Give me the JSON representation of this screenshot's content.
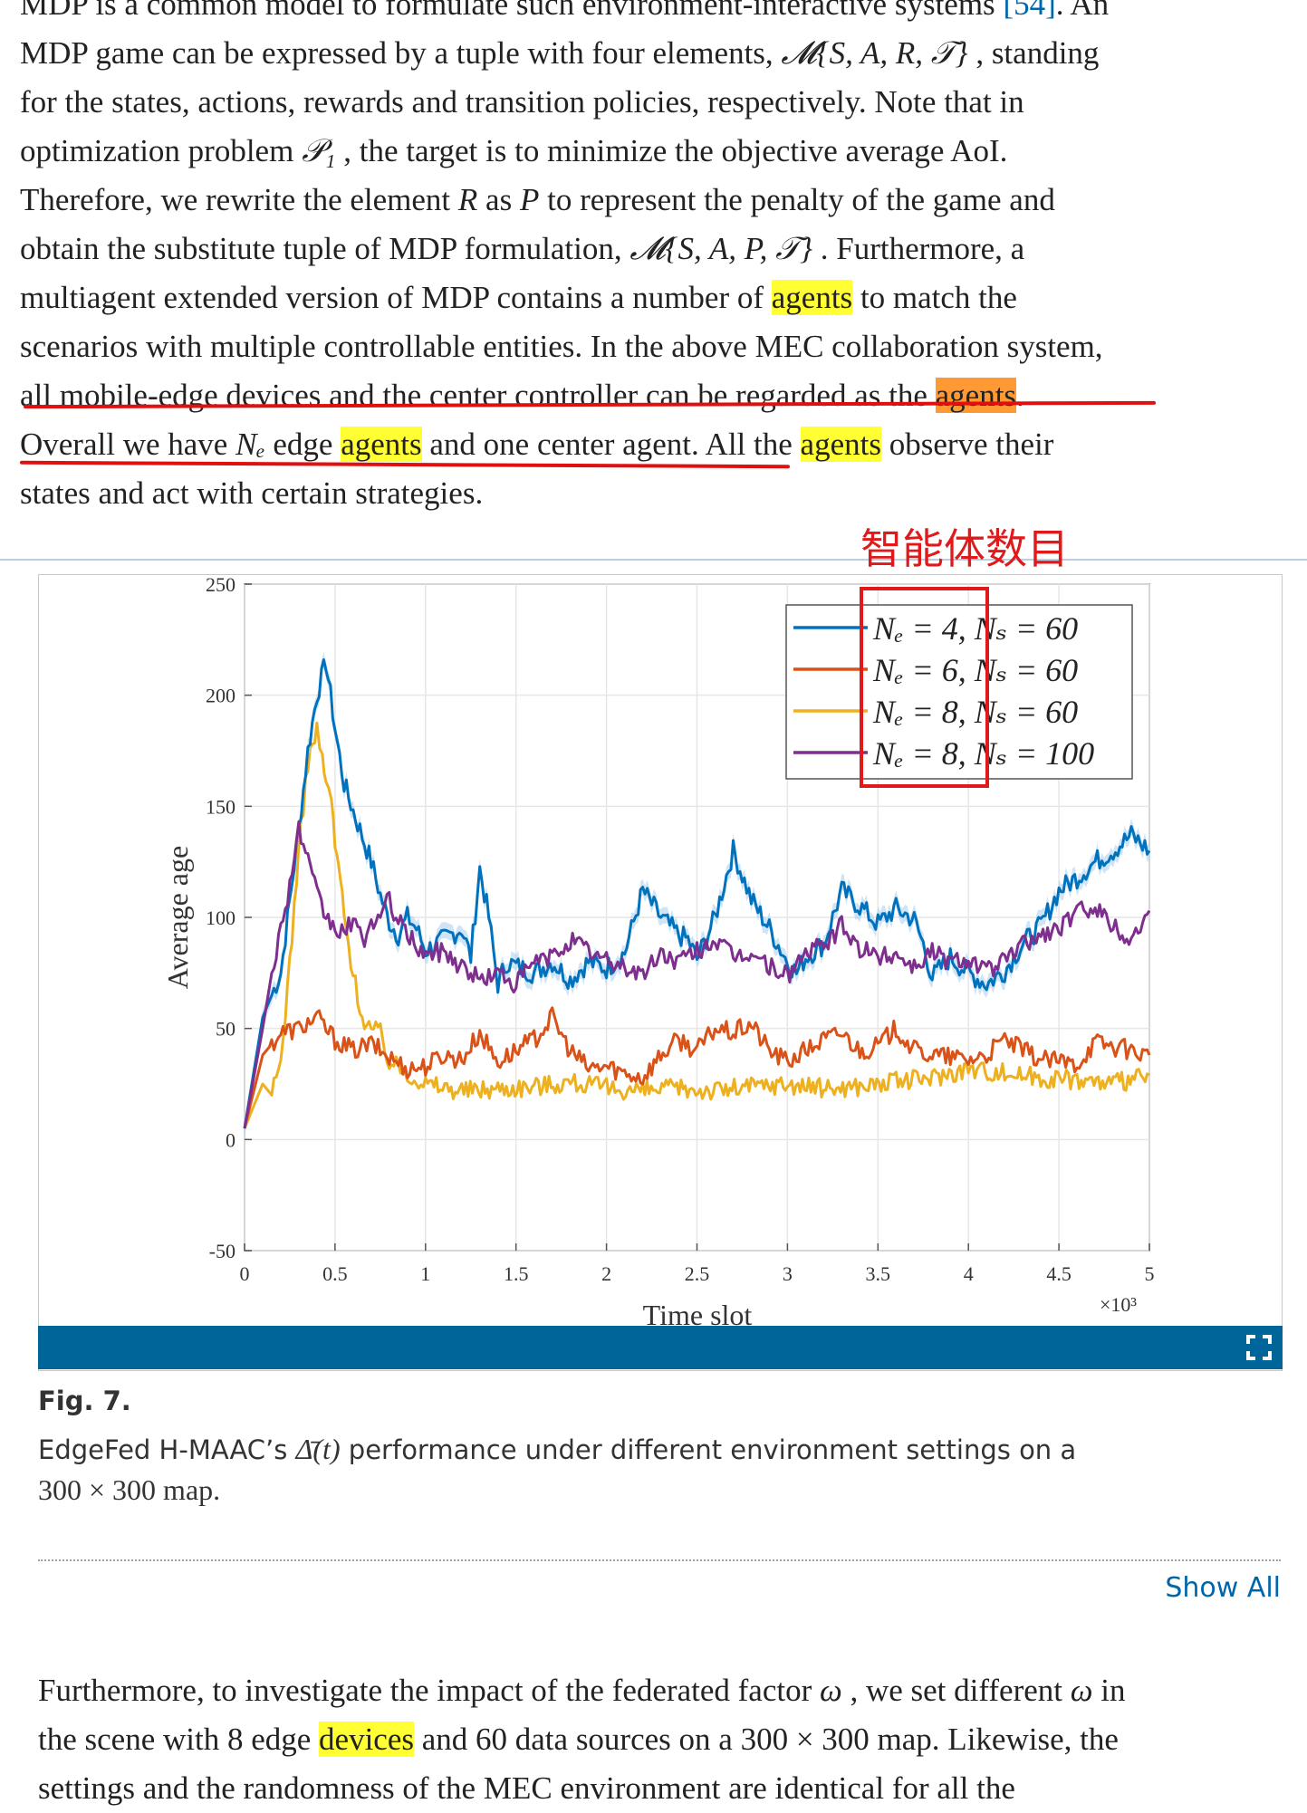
{
  "paragraph1": {
    "l0_a": "MDP is a common model to formulate such environment-interactive systems ",
    "l0_ref": "[54]",
    "l0_b": ". An",
    "l1_a": "MDP game can be expressed by a tuple with four elements, ",
    "l1_math": "𝓜{S, A, R, 𝒯}",
    "l1_b": " , standing",
    "l2": "for the states, actions, rewards and transition policies, respectively. Note that in",
    "l3_a": "optimization problem ",
    "l3_math": "𝒫₁",
    "l3_b": " , the target is to minimize the objective average AoI.",
    "l4_a": "Therefore, we rewrite the element ",
    "l4_R": "R",
    "l4_b": " as ",
    "l4_P": "P",
    "l4_c": " to represent the penalty of the game and",
    "l5_a": "obtain the substitute tuple of MDP formulation, ",
    "l5_math": "𝓜{S, A, P, 𝒯}",
    "l5_b": " . Furthermore, a",
    "l6_a": "multiagent extended version of MDP contains a number of ",
    "l6_hl": "agents",
    "l6_b": " to match the",
    "l7": "scenarios with multiple controllable entities. In the above MEC collaboration system,",
    "l8_a": "all mobile-edge devices and the center controller can be regarded as the ",
    "l8_hl": "agents",
    "l8_b": ".",
    "l9_a": "Overall we have ",
    "l9_math": "Nₑ",
    "l9_b": " edge ",
    "l9_hl1": "agents",
    "l9_c": " and one center agent. All the ",
    "l9_hl2": "agents",
    "l9_d": " observe their",
    "l10": "states and act with certain strategies."
  },
  "annotation": {
    "label": "智能体数目",
    "color": "#e01a1a"
  },
  "figure": {
    "caption_title": "Fig. 7.",
    "caption_a": "EdgeFed H-MAAC’s ",
    "caption_math": "Δ̄(t)",
    "caption_b": " performance under different environment settings on a",
    "caption_c": "300 × 300 map.",
    "expand_icon": "expand-icon",
    "show_all": "Show All"
  },
  "paragraph2": {
    "l0_a": "Furthermore, to investigate the impact of the federated factor ",
    "l0_math": "ω",
    "l0_b": " , we set different ",
    "l0_math2": "ω",
    "l0_c": " in",
    "l1_a": "the scene with 8 edge ",
    "l1_hl": "devices",
    "l1_b": " and 60 data sources on a 300 × 300 map. Likewise, the",
    "l2": "settings and the randomness of the MEC environment are identical for all the"
  },
  "colors": {
    "highlight": "#ffff33",
    "highlight_active": "#ff9933",
    "underline": "#e01010",
    "figure_bar": "#006699",
    "link": "#0066aa"
  },
  "chart_data": {
    "type": "line",
    "xlabel": "Time slot",
    "ylabel": "Average age",
    "x_multiplier_label": "×10³",
    "xlim": [
      0,
      5
    ],
    "ylim": [
      -50,
      250
    ],
    "xticks": [
      "0",
      "0.5",
      "1",
      "1.5",
      "2",
      "2.5",
      "3",
      "3.5",
      "4",
      "4.5",
      "5"
    ],
    "yticks": [
      "250",
      "200",
      "150",
      "100",
      "50",
      "0",
      "-50"
    ],
    "grid": true,
    "legend_position": "top-right",
    "series": [
      {
        "name": "Nₑ = 4, Nₛ = 60",
        "color": "#0072bd",
        "band": true,
        "x": [
          0,
          0.1,
          0.2,
          0.3,
          0.35,
          0.4,
          0.45,
          0.5,
          0.55,
          0.6,
          0.7,
          0.75,
          0.8,
          0.85,
          0.9,
          0.95,
          1.0,
          1.1,
          1.2,
          1.25,
          1.3,
          1.35,
          1.4,
          1.45,
          1.5,
          1.6,
          1.7,
          1.8,
          1.9,
          2.0,
          2.1,
          2.2,
          2.3,
          2.4,
          2.45,
          2.5,
          2.6,
          2.7,
          2.8,
          2.9,
          3.0,
          3.05,
          3.1,
          3.2,
          3.3,
          3.4,
          3.5,
          3.6,
          3.7,
          3.75,
          3.8,
          3.9,
          4.0,
          4.1,
          4.2,
          4.3,
          4.4,
          4.5,
          4.6,
          4.7,
          4.8,
          4.9,
          5.0
        ],
        "y": [
          5,
          55,
          75,
          140,
          175,
          200,
          215,
          185,
          160,
          148,
          125,
          110,
          98,
          92,
          100,
          95,
          85,
          90,
          95,
          82,
          122,
          100,
          70,
          80,
          78,
          75,
          80,
          72,
          80,
          77,
          84,
          112,
          100,
          92,
          90,
          81,
          100,
          130,
          108,
          95,
          80,
          75,
          82,
          88,
          112,
          105,
          97,
          104,
          99,
          88,
          73,
          82,
          75,
          70,
          76,
          88,
          96,
          112,
          118,
          125,
          130,
          137,
          130
        ]
      },
      {
        "name": "Nₑ = 6, Nₛ = 60",
        "color": "#d95319",
        "band": false,
        "x": [
          0,
          0.1,
          0.2,
          0.3,
          0.4,
          0.5,
          0.6,
          0.7,
          0.8,
          0.9,
          1.0,
          1.1,
          1.2,
          1.3,
          1.4,
          1.5,
          1.6,
          1.7,
          1.8,
          1.9,
          2.0,
          2.1,
          2.2,
          2.3,
          2.4,
          2.5,
          2.6,
          2.7,
          2.8,
          2.9,
          3.0,
          3.1,
          3.2,
          3.3,
          3.4,
          3.5,
          3.6,
          3.7,
          3.8,
          3.9,
          4.0,
          4.1,
          4.2,
          4.3,
          4.4,
          4.5,
          4.6,
          4.7,
          4.8,
          4.9,
          5.0
        ],
        "y": [
          5,
          38,
          48,
          50,
          55,
          45,
          40,
          43,
          37,
          32,
          33,
          38,
          36,
          48,
          35,
          40,
          45,
          55,
          40,
          32,
          33,
          30,
          28,
          38,
          45,
          40,
          50,
          48,
          52,
          40,
          35,
          40,
          45,
          48,
          40,
          42,
          50,
          40,
          38,
          37,
          36,
          38,
          45,
          40,
          36,
          35,
          34,
          44,
          42,
          40,
          38
        ]
      },
      {
        "name": "Nₑ = 8, Nₛ = 60",
        "color": "#edb120",
        "band": false,
        "x": [
          0,
          0.1,
          0.15,
          0.2,
          0.25,
          0.3,
          0.35,
          0.4,
          0.43,
          0.45,
          0.48,
          0.5,
          0.52,
          0.55,
          0.6,
          0.65,
          0.7,
          0.75,
          0.8,
          0.9,
          1.0,
          1.2,
          1.4,
          1.6,
          1.8,
          2.0,
          2.2,
          2.4,
          2.6,
          2.8,
          3.0,
          3.2,
          3.4,
          3.6,
          3.8,
          4.0,
          4.2,
          4.4,
          4.6,
          4.8,
          5.0
        ],
        "y": [
          5,
          25,
          20,
          35,
          80,
          130,
          170,
          185,
          170,
          160,
          155,
          130,
          125,
          100,
          75,
          55,
          50,
          48,
          35,
          30,
          25,
          22,
          23,
          24,
          26,
          23,
          22,
          23,
          22,
          24,
          25,
          23,
          24,
          26,
          28,
          32,
          30,
          28,
          27,
          25,
          29
        ]
      },
      {
        "name": "Nₑ = 8, Nₛ = 100",
        "color": "#7e2f8e",
        "band": false,
        "x": [
          0,
          0.1,
          0.15,
          0.2,
          0.25,
          0.3,
          0.35,
          0.4,
          0.45,
          0.5,
          0.55,
          0.6,
          0.65,
          0.7,
          0.75,
          0.8,
          0.85,
          0.9,
          1.0,
          1.1,
          1.2,
          1.3,
          1.4,
          1.5,
          1.6,
          1.7,
          1.8,
          1.9,
          2.0,
          2.1,
          2.2,
          2.3,
          2.4,
          2.5,
          2.6,
          2.7,
          2.8,
          2.9,
          3.0,
          3.1,
          3.2,
          3.3,
          3.4,
          3.5,
          3.6,
          3.7,
          3.8,
          3.9,
          4.0,
          4.1,
          4.2,
          4.3,
          4.4,
          4.5,
          4.6,
          4.7,
          4.8,
          4.9,
          5.0
        ],
        "y": [
          5,
          50,
          75,
          95,
          115,
          140,
          125,
          110,
          100,
          95,
          92,
          100,
          88,
          98,
          100,
          108,
          98,
          92,
          83,
          85,
          78,
          72,
          75,
          70,
          80,
          82,
          90,
          85,
          80,
          78,
          74,
          84,
          80,
          85,
          90,
          82,
          84,
          78,
          74,
          84,
          87,
          96,
          86,
          82,
          84,
          78,
          85,
          80,
          82,
          76,
          80,
          88,
          92,
          95,
          102,
          106,
          96,
          90,
          103
        ]
      }
    ]
  }
}
